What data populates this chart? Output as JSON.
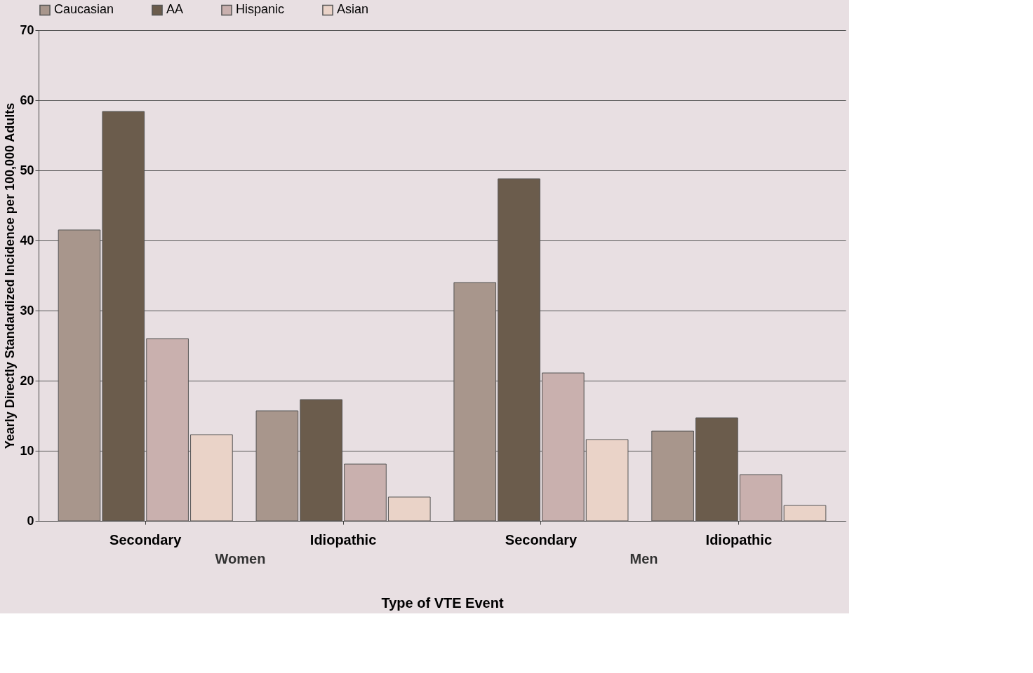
{
  "chart_data": {
    "type": "bar",
    "categories": [
      "Secondary",
      "Idiopathic",
      "Secondary",
      "Idiopathic"
    ],
    "xlabel": "Type of VTE Event",
    "ylabel": "Yearly Directly Standardized Incidence per 100,000 Adults",
    "annotations": [
      "Women",
      "Men"
    ],
    "series": [
      {
        "name": "Caucasian",
        "color": "#a8968c",
        "values": [
          41.5,
          15.7,
          34.0,
          12.8
        ]
      },
      {
        "name": "AA",
        "color": "#6b5c4c",
        "values": [
          58.4,
          17.3,
          48.8,
          14.7
        ]
      },
      {
        "name": "Hispanic",
        "color": "#c9b0ae",
        "values": [
          26.0,
          8.1,
          21.1,
          6.6
        ]
      },
      {
        "name": "Asian",
        "color": "#ead3c8",
        "values": [
          12.3,
          3.4,
          11.6,
          2.2
        ]
      }
    ],
    "ylim": [
      0,
      70
    ],
    "yticks": [
      0,
      10,
      20,
      30,
      40,
      50,
      60,
      70
    ],
    "grid": "y",
    "legend": "top"
  }
}
